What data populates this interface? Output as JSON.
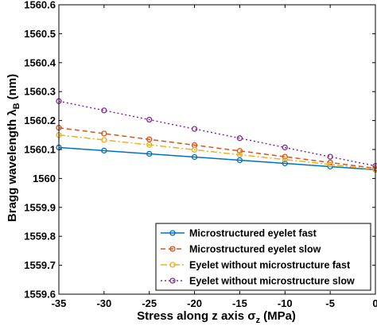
{
  "chart_data": {
    "type": "line",
    "title": "",
    "xlabel": "Stress along z axis σ",
    "xlabel_sub": "z",
    "xlabel_unit": "(MPa)",
    "ylabel": "Bragg wavelength λ",
    "ylabel_sub": "B",
    "ylabel_unit": "(nm)",
    "xlim": [
      -35,
      0
    ],
    "ylim": [
      1559.6,
      1560.6
    ],
    "xticks": [
      -35,
      -30,
      -25,
      -20,
      -15,
      -10,
      -5,
      0
    ],
    "yticks": [
      "1559.6",
      "1559.7",
      "1559.8",
      "1559.9",
      "1560",
      "1560.1",
      "1560.2",
      "1560.3",
      "1560.4",
      "1560.5",
      "1560.6"
    ],
    "grid": false,
    "legend_position": "bottom-right",
    "x": [
      -35,
      -30,
      -25,
      -20,
      -15,
      -10,
      -5,
      0
    ],
    "series": [
      {
        "name": "Microstructured eyelet fast",
        "color": "#0072BD",
        "line_style": "solid",
        "marker": "circle",
        "values": [
          1560.107,
          1560.096,
          1560.085,
          1560.074,
          1560.063,
          1560.052,
          1560.041,
          1560.03
        ]
      },
      {
        "name": "Microstructured eyelet slow",
        "color": "#D95319",
        "line_style": "dashed",
        "marker": "circle",
        "values": [
          1560.175,
          1560.155,
          1560.135,
          1560.115,
          1560.095,
          1560.075,
          1560.055,
          1560.035
        ]
      },
      {
        "name": "Eyelet without microstructure fast",
        "color": "#EDB120",
        "line_style": "dash-dot",
        "marker": "circle",
        "values": [
          1560.15,
          1560.133,
          1560.116,
          1560.099,
          1560.082,
          1560.065,
          1560.048,
          1560.031
        ]
      },
      {
        "name": "Eyelet without microstructure slow",
        "color": "#7E2F8E",
        "line_style": "dotted",
        "marker": "circle",
        "values": [
          1560.267,
          1560.235,
          1560.203,
          1560.171,
          1560.139,
          1560.107,
          1560.075,
          1560.043
        ]
      }
    ]
  }
}
